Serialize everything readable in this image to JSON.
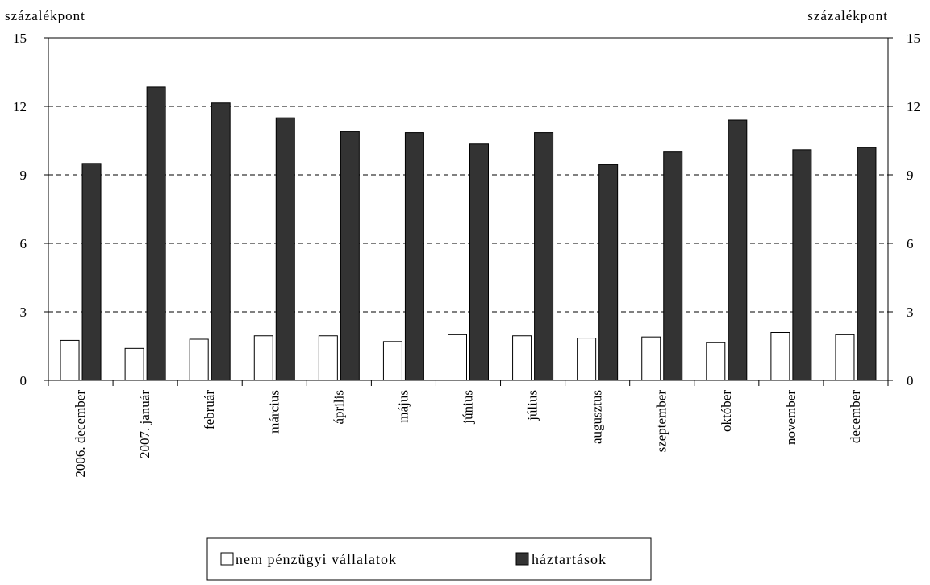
{
  "chart_data": {
    "type": "bar",
    "left_axis_unit": "százalékpont",
    "right_axis_unit": "százalékpont",
    "ylim": [
      0,
      15
    ],
    "yticks": [
      "0",
      "3",
      "6",
      "9",
      "12",
      "15"
    ],
    "grid": "dashed horizontal at 3, 6, 9, 12",
    "categories": [
      "2006. december",
      "2007. január",
      "február",
      "március",
      "április",
      "május",
      "június",
      "július",
      "augusztus",
      "szeptember",
      "október",
      "november",
      "december"
    ],
    "series": [
      {
        "name": "nem pénzügyi vállalatok",
        "color": "#ffffff",
        "values": [
          1.75,
          1.4,
          1.8,
          1.95,
          1.95,
          1.7,
          2.0,
          1.95,
          1.85,
          1.9,
          1.65,
          2.1,
          2.0
        ]
      },
      {
        "name": "háztartások",
        "color": "#333333",
        "values": [
          9.5,
          12.85,
          12.15,
          11.5,
          10.9,
          10.85,
          10.35,
          10.85,
          9.45,
          10.0,
          11.4,
          10.1,
          10.2
        ]
      }
    ],
    "legend_position": "bottom-center"
  }
}
